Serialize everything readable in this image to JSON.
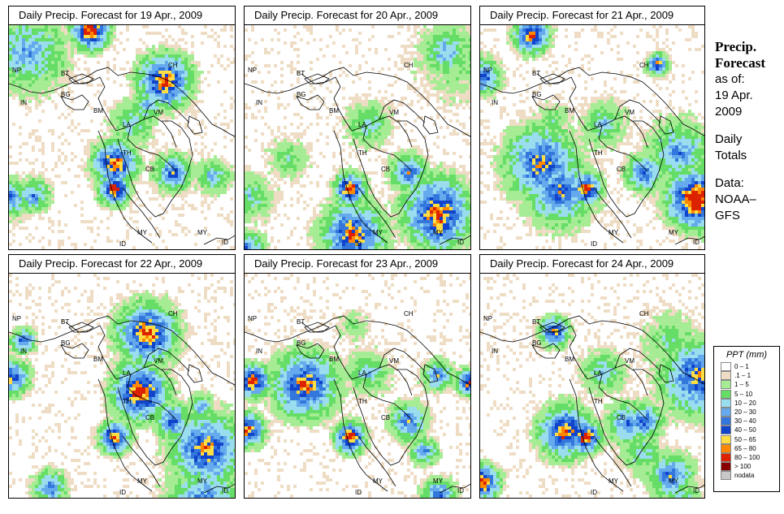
{
  "panels": [
    {
      "title": "Daily Precip. Forecast for  19 Apr., 2009"
    },
    {
      "title": "Daily Precip. Forecast for  20 Apr., 2009"
    },
    {
      "title": "Daily Precip. Forecast for  21 Apr., 2009"
    },
    {
      "title": "Daily Precip. Forecast for  22 Apr., 2009"
    },
    {
      "title": "Daily Precip. Forecast for  23 Apr., 2009"
    },
    {
      "title": "Daily Precip. Forecast for  24 Apr., 2009"
    }
  ],
  "country_labels": [
    "NP",
    "BT",
    "BG",
    "IN",
    "BM",
    "CH",
    "VM",
    "LA",
    "TH",
    "CB",
    "CH",
    "MY",
    "ID",
    "MY",
    "ID"
  ],
  "sidebar": {
    "title_line1": "Precip.",
    "title_line2": "Forecast",
    "asof_label": "as of:",
    "date_line1": "19 Apr.",
    "date_line2": "2009",
    "totals_line1": "Daily",
    "totals_line2": "Totals",
    "data_line1": "Data:",
    "data_line2": "NOAA–",
    "data_line3": "GFS"
  },
  "legend": {
    "title": "PPT (mm)",
    "items": [
      {
        "label": "0 – 1",
        "color": "#ffffff"
      },
      {
        "label": ".1 – 1",
        "color": "#eeddc4"
      },
      {
        "label": "1 – 5",
        "color": "#a6ec94"
      },
      {
        "label": "5 – 10",
        "color": "#66dd66"
      },
      {
        "label": "10 – 20",
        "color": "#99ddee"
      },
      {
        "label": "20 – 30",
        "color": "#66aaee"
      },
      {
        "label": "30 – 40",
        "color": "#3377dd"
      },
      {
        "label": "40 – 50",
        "color": "#1144cc"
      },
      {
        "label": "50 – 65",
        "color": "#ffdd44"
      },
      {
        "label": "65 – 80",
        "color": "#ff8800"
      },
      {
        "label": "80 – 100",
        "color": "#dd2200"
      },
      {
        "label": "> 100",
        "color": "#880000"
      },
      {
        "label": "nodata",
        "color": "#c8c8c8"
      }
    ]
  }
}
